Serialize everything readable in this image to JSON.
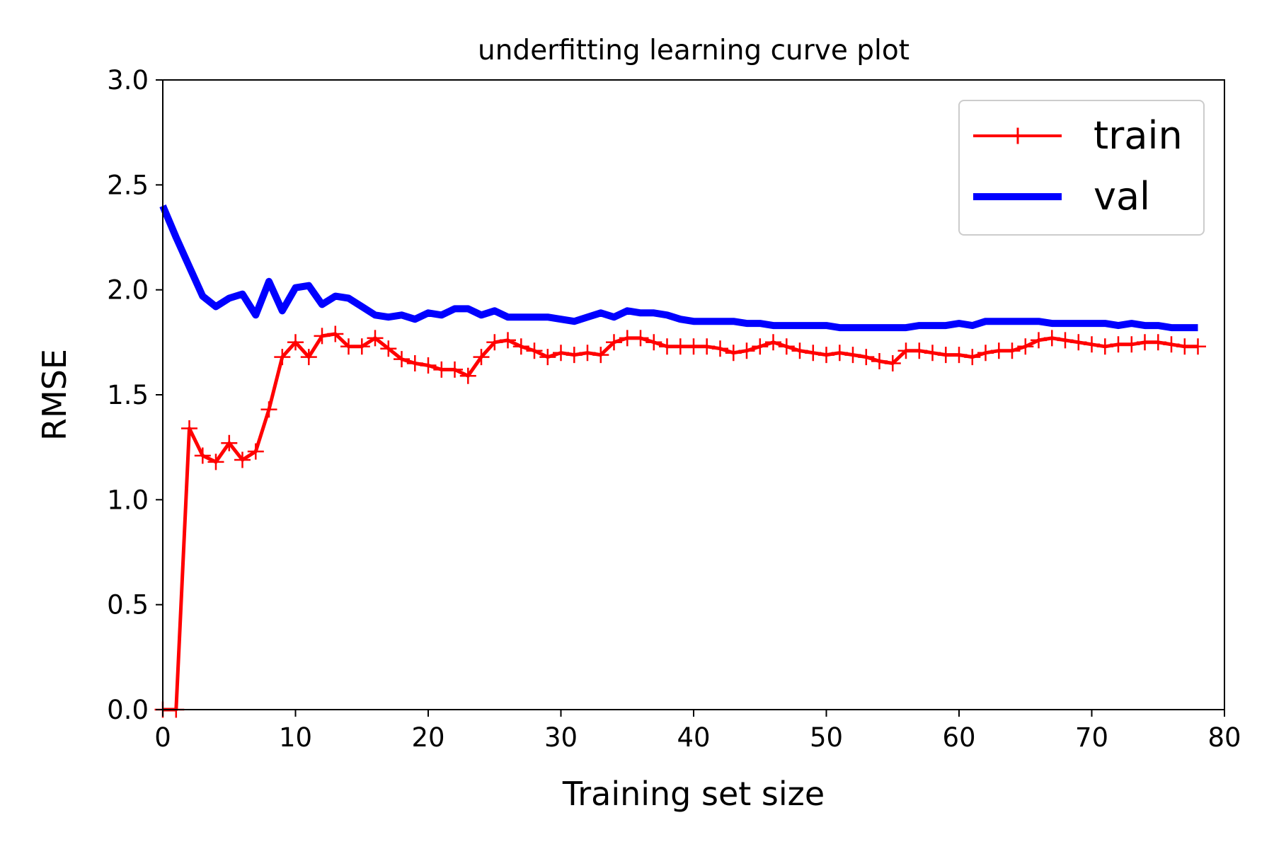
{
  "chart_data": {
    "type": "line",
    "title": "underfitting learning curve plot",
    "xlabel": "Training set size",
    "ylabel": "RMSE",
    "xlim": [
      0,
      80
    ],
    "ylim": [
      0,
      3
    ],
    "xticks": [
      0,
      10,
      20,
      30,
      40,
      50,
      60,
      70,
      80
    ],
    "xtick_labels": [
      "0",
      "10",
      "20",
      "30",
      "40",
      "50",
      "60",
      "70",
      "80"
    ],
    "yticks": [
      0,
      0.5,
      1,
      1.5,
      2,
      2.5,
      3
    ],
    "ytick_labels": [
      "0.0",
      "0.5",
      "1.0",
      "1.5",
      "2.0",
      "2.5",
      "3.0"
    ],
    "grid": false,
    "legend_position": "top-right",
    "x": [
      0,
      1,
      2,
      3,
      4,
      5,
      6,
      7,
      8,
      9,
      10,
      11,
      12,
      13,
      14,
      15,
      16,
      17,
      18,
      19,
      20,
      21,
      22,
      23,
      24,
      25,
      26,
      27,
      28,
      29,
      30,
      31,
      32,
      33,
      34,
      35,
      36,
      37,
      38,
      39,
      40,
      41,
      42,
      43,
      44,
      45,
      46,
      47,
      48,
      49,
      50,
      51,
      52,
      53,
      54,
      55,
      56,
      57,
      58,
      59,
      60,
      61,
      62,
      63,
      64,
      65,
      66,
      67,
      68,
      69,
      70,
      71,
      72,
      73,
      74,
      75,
      76,
      77,
      78
    ],
    "series": [
      {
        "name": "train",
        "color": "#ff0000",
        "marker": "plus",
        "values": [
          0.0,
          0.0,
          1.34,
          1.21,
          1.18,
          1.27,
          1.19,
          1.23,
          1.43,
          1.68,
          1.75,
          1.68,
          1.78,
          1.79,
          1.73,
          1.73,
          1.77,
          1.72,
          1.67,
          1.65,
          1.64,
          1.62,
          1.62,
          1.59,
          1.68,
          1.75,
          1.76,
          1.73,
          1.71,
          1.68,
          1.7,
          1.69,
          1.7,
          1.69,
          1.75,
          1.77,
          1.77,
          1.75,
          1.73,
          1.73,
          1.73,
          1.73,
          1.72,
          1.7,
          1.71,
          1.73,
          1.75,
          1.73,
          1.71,
          1.7,
          1.69,
          1.7,
          1.69,
          1.68,
          1.66,
          1.65,
          1.71,
          1.71,
          1.7,
          1.69,
          1.69,
          1.68,
          1.7,
          1.71,
          1.71,
          1.73,
          1.76,
          1.77,
          1.76,
          1.75,
          1.74,
          1.73,
          1.74,
          1.74,
          1.75,
          1.75,
          1.74,
          1.73,
          1.73
        ]
      },
      {
        "name": "val",
        "color": "#0000ff",
        "marker": "none",
        "values": [
          2.4,
          2.25,
          2.11,
          1.97,
          1.92,
          1.96,
          1.98,
          1.88,
          2.04,
          1.9,
          2.01,
          2.02,
          1.93,
          1.97,
          1.96,
          1.92,
          1.88,
          1.87,
          1.88,
          1.86,
          1.89,
          1.88,
          1.91,
          1.91,
          1.88,
          1.9,
          1.87,
          1.87,
          1.87,
          1.87,
          1.86,
          1.85,
          1.87,
          1.89,
          1.87,
          1.9,
          1.89,
          1.89,
          1.88,
          1.86,
          1.85,
          1.85,
          1.85,
          1.85,
          1.84,
          1.84,
          1.83,
          1.83,
          1.83,
          1.83,
          1.83,
          1.82,
          1.82,
          1.82,
          1.82,
          1.82,
          1.82,
          1.83,
          1.83,
          1.83,
          1.84,
          1.83,
          1.85,
          1.85,
          1.85,
          1.85,
          1.85,
          1.84,
          1.84,
          1.84,
          1.84,
          1.84,
          1.83,
          1.84,
          1.83,
          1.83,
          1.82,
          1.82,
          1.82
        ]
      }
    ]
  }
}
